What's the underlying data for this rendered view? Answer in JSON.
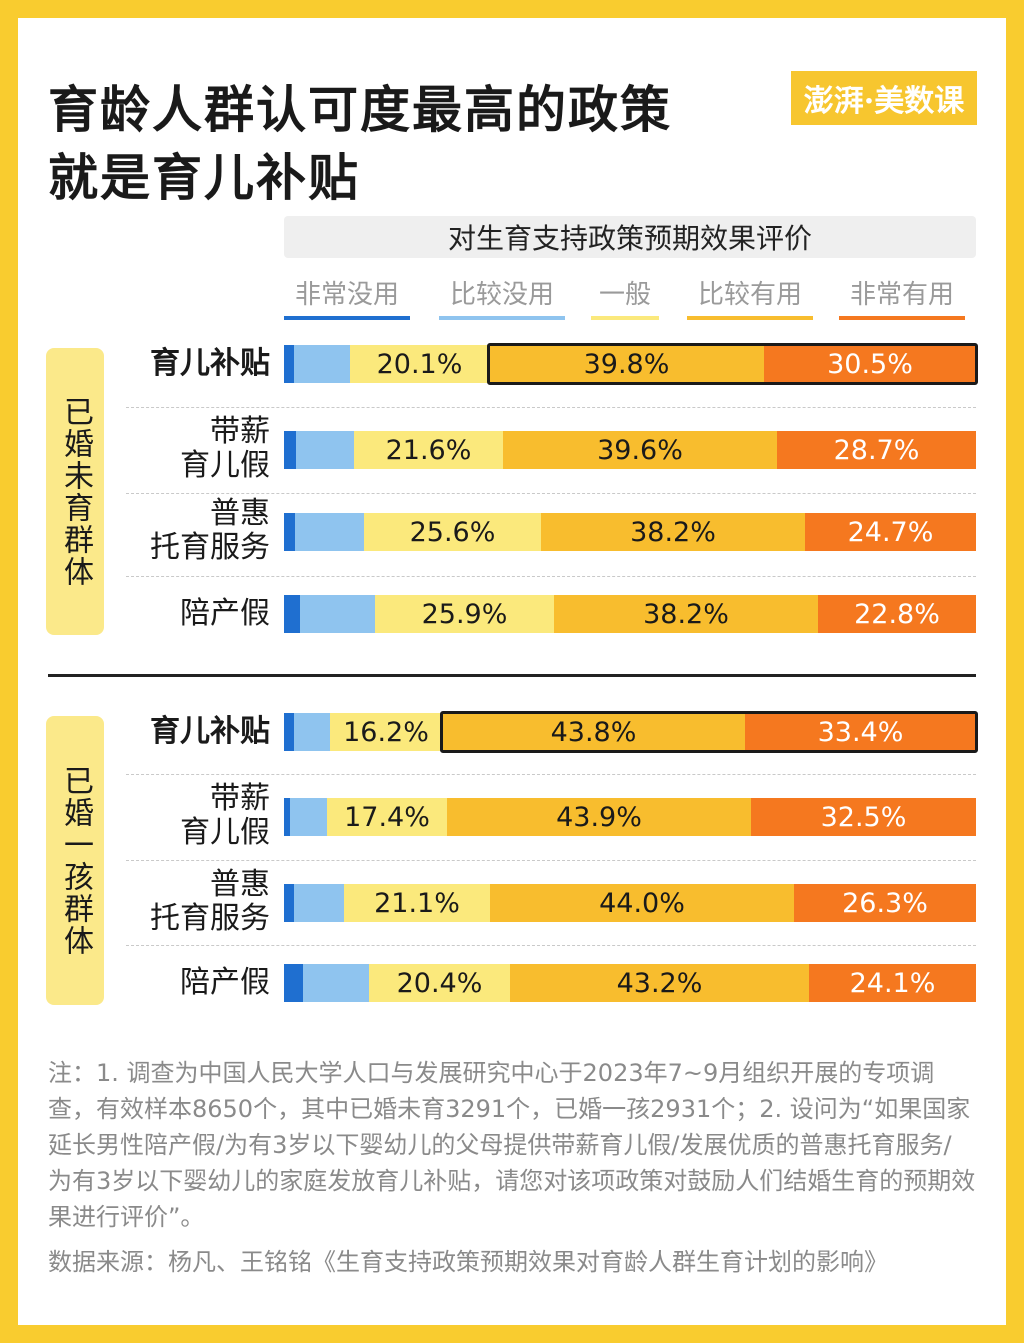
{
  "title": [
    "育龄人群认可度最高的政策",
    "就是育儿补贴"
  ],
  "logo_text": "澎湃·美数课",
  "colors": {
    "very_useless": "#1f6fd0",
    "somewhat_useless": "#8fc4ef",
    "average": "#fbe97c",
    "somewhat_useful": "#f8bd2e",
    "very_useful": "#f5781f"
  },
  "chart_data": {
    "type": "bar",
    "stacked": true,
    "orientation": "horizontal",
    "title": "对生育支持政策预期效果评价",
    "legend": [
      "非常没用",
      "比较没用",
      "一般",
      "比较有用",
      "非常有用"
    ],
    "groups": [
      {
        "name": "已婚未育群体",
        "rows": [
          {
            "label": "育儿补贴",
            "highlight": true,
            "values": [
              1.5,
              8.1,
              20.1,
              39.8,
              30.5
            ]
          },
          {
            "label": "带薪育儿假",
            "highlight": false,
            "values": [
              1.7,
              8.4,
              21.6,
              39.6,
              28.7
            ]
          },
          {
            "label": "普惠托育服务",
            "highlight": false,
            "values": [
              1.6,
              9.9,
              25.6,
              38.2,
              24.7
            ]
          },
          {
            "label": "陪产假",
            "highlight": false,
            "values": [
              2.3,
              10.8,
              25.9,
              38.2,
              22.8
            ]
          }
        ]
      },
      {
        "name": "已婚一孩群体",
        "rows": [
          {
            "label": "育儿补贴",
            "highlight": true,
            "values": [
              1.4,
              5.2,
              16.2,
              43.8,
              33.4
            ]
          },
          {
            "label": "带薪育儿假",
            "highlight": false,
            "values": [
              0.8,
              5.4,
              17.4,
              43.9,
              32.5
            ]
          },
          {
            "label": "普惠托育服务",
            "highlight": false,
            "values": [
              1.4,
              7.2,
              21.1,
              44.0,
              26.3
            ]
          },
          {
            "label": "陪产假",
            "highlight": false,
            "values": [
              2.7,
              9.6,
              20.4,
              43.2,
              24.1
            ]
          }
        ]
      }
    ],
    "shown_labels": [
      2,
      3,
      4
    ],
    "unit": "%"
  },
  "notes": [
    "注：1.  调查为中国人民大学人口与发展研究中心于2023年7~9月组织开展的专项调查，有效样本8650个，其中已婚未育3291个，已婚一孩2931个；2.  设问为“如果国家延长男性陪产假/为有3岁以下婴幼儿的父母提供带薪育儿假/发展优质的普惠托育服务/ 为有3岁以下婴幼儿的家庭发放育儿补贴，请您对该项政策对鼓励人们结婚生育的预期效果进行评价”。",
    "数据来源：杨凡、王铭铭《生育支持政策预期效果对育龄人群生育计划的影响》"
  ]
}
